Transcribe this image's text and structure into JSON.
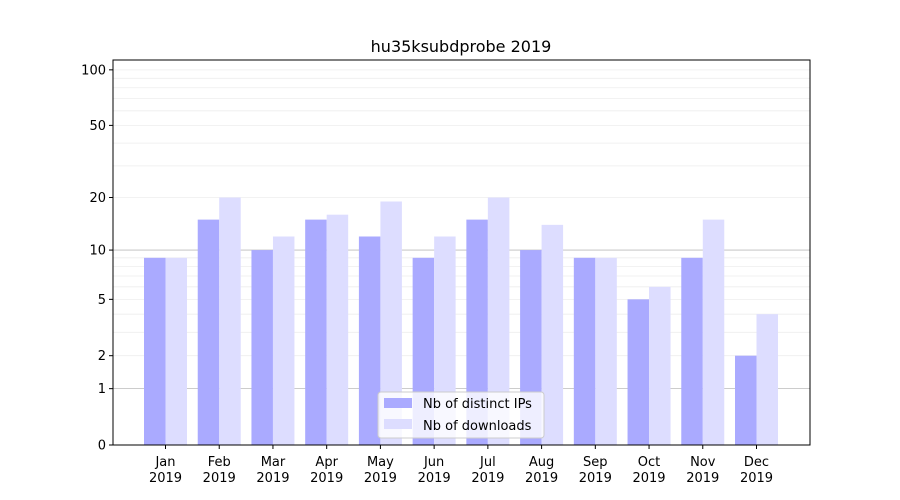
{
  "chart_data": {
    "type": "bar",
    "title": "hu35ksubdprobe 2019",
    "xlabel": "",
    "ylabel": "",
    "yscale": "log10(y+1)",
    "ylim": [
      0,
      113
    ],
    "yticks": [
      0,
      1,
      2,
      5,
      10,
      20,
      50,
      100
    ],
    "categories": [
      "Jan\n2019",
      "Feb\n2019",
      "Mar\n2019",
      "Apr\n2019",
      "May\n2019",
      "Jun\n2019",
      "Jul\n2019",
      "Aug\n2019",
      "Sep\n2019",
      "Oct\n2019",
      "Nov\n2019",
      "Dec\n2019"
    ],
    "series": [
      {
        "name": "Nb of distinct IPs",
        "color": "#aaaaff",
        "values": [
          9,
          15,
          10,
          15,
          12,
          9,
          15,
          10,
          9,
          5,
          9,
          2
        ]
      },
      {
        "name": "Nb of downloads",
        "color": "#ddddff",
        "values": [
          9,
          20,
          12,
          16,
          19,
          12,
          20,
          14,
          9,
          6,
          15,
          4
        ]
      }
    ],
    "legend": "lower-center",
    "grid": true
  }
}
